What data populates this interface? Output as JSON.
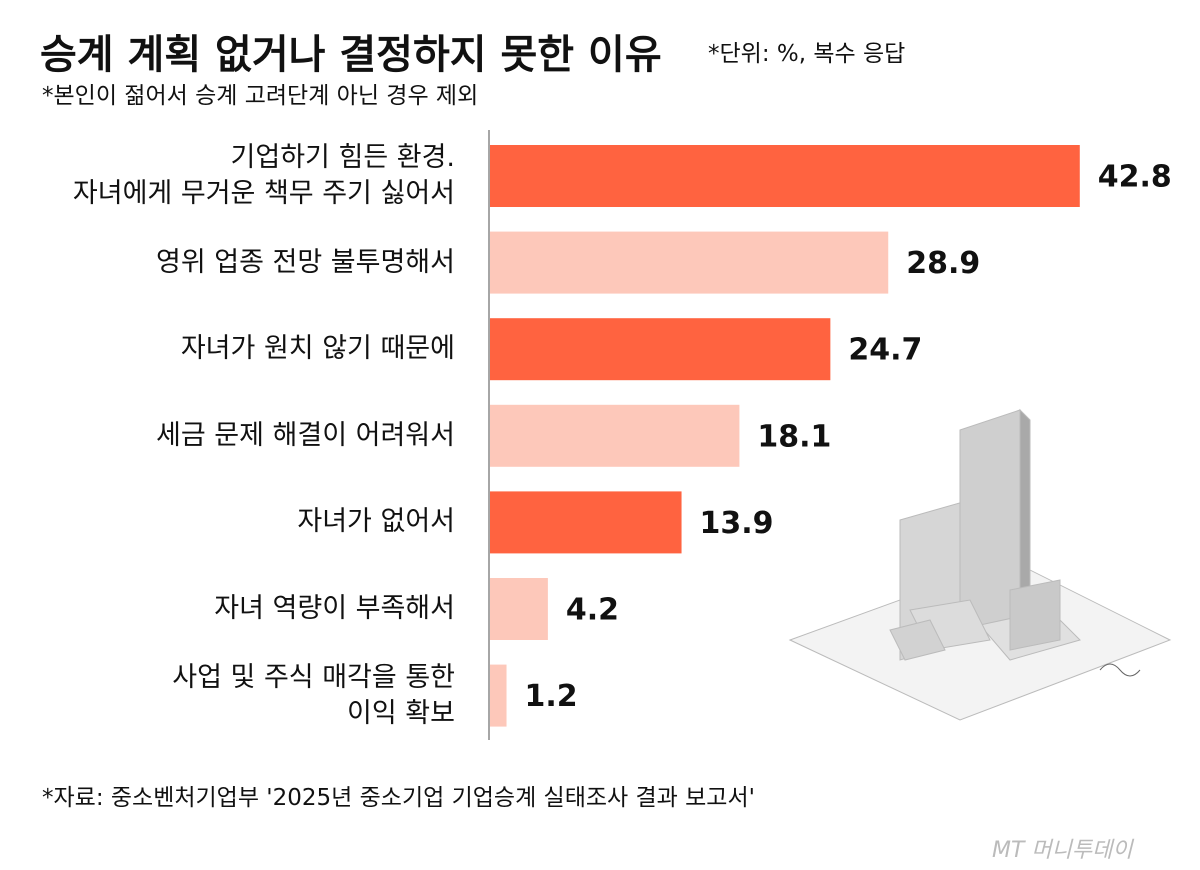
{
  "chart_data": {
    "type": "bar",
    "orientation": "horizontal",
    "title": "승계 계획 없거나 결정하지 못한 이유",
    "unit_note": "*단위: %, 복수 응답",
    "subtitle": "*본인이 젊어서 승계 고려단계 아닌 경우 제외",
    "categories": [
      "기업하기 힘든 환경.\n자녀에게 무거운 책무 주기 싫어서",
      "영위 업종 전망 불투명해서",
      "자녀가 원치 않기 때문에",
      "세금 문제 해결이 어려워서",
      "자녀가 없어서",
      "자녀 역량이 부족해서",
      "사업 및 주식 매각을 통한\n이익 확보"
    ],
    "values": [
      42.8,
      28.9,
      24.7,
      18.1,
      13.9,
      4.2,
      1.2
    ],
    "colors": [
      "#ff6340",
      "#fdc8ba",
      "#ff6340",
      "#fdc8ba",
      "#ff6340",
      "#fdc8ba",
      "#fdc8ba"
    ],
    "xlim": [
      0,
      50
    ],
    "source": "*자료: 중소벤처기업부 '2025년 중소기업 기업승계 실태조사 결과 보고서'",
    "logo": "MT 머니투데이"
  }
}
